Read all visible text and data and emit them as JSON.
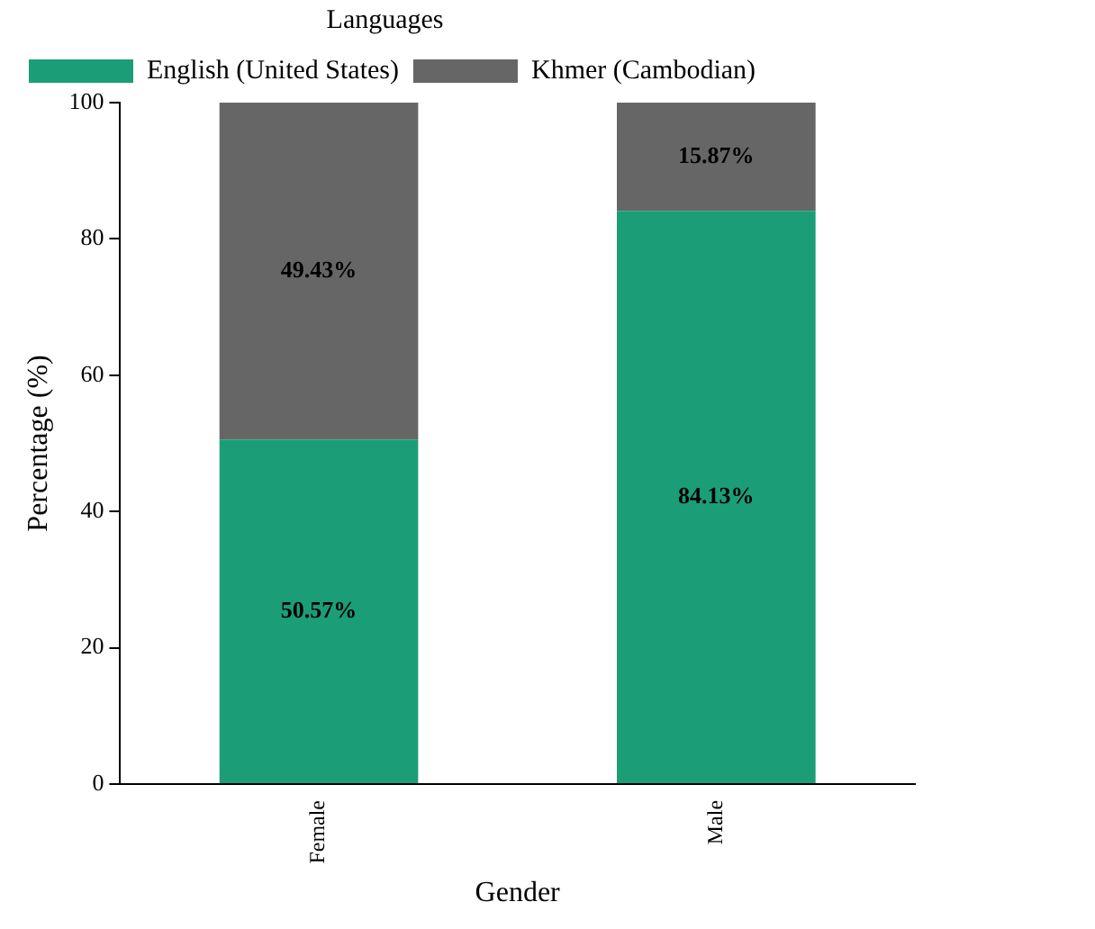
{
  "chart_data": {
    "type": "bar",
    "stacked": true,
    "legend_title": "Languages",
    "legend": "top",
    "xlabel": "Gender",
    "ylabel": "Percentage (%)",
    "categories": [
      "Female",
      "Male"
    ],
    "series": [
      {
        "name": "English (United States)",
        "color": "#1b9e77",
        "values": [
          50.57,
          84.13
        ],
        "value_labels": [
          "50.57%",
          "84.13%"
        ]
      },
      {
        "name": "Khmer (Cambodian)",
        "color": "#666666",
        "values": [
          49.43,
          15.87
        ],
        "value_labels": [
          "49.43%",
          "15.87%"
        ]
      }
    ],
    "ylim": [
      0,
      100
    ],
    "yticks": [
      0,
      20,
      40,
      60,
      80,
      100
    ],
    "grid": false
  }
}
